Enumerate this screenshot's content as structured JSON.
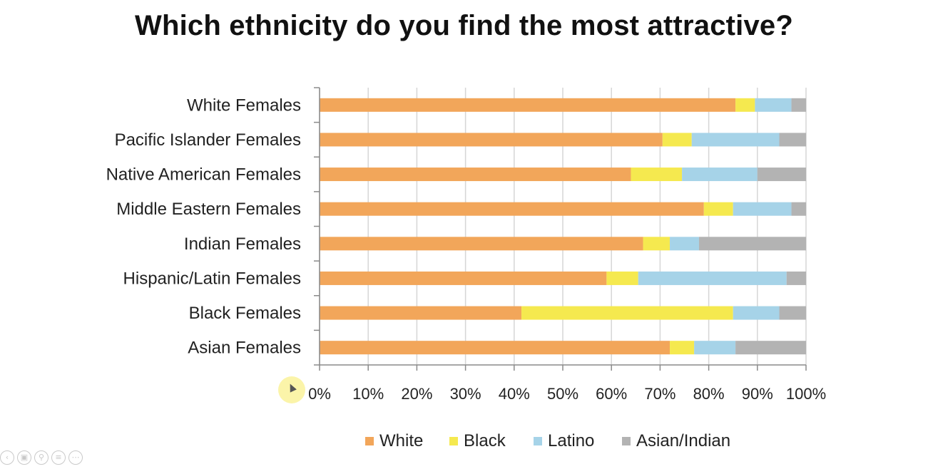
{
  "chart_data": {
    "type": "bar",
    "orientation": "horizontal",
    "stacked": "percent",
    "title": "Which ethnicity do you find the most attractive?",
    "xlabel": "",
    "ylabel": "",
    "xlim": [
      0,
      100
    ],
    "x_ticks": [
      "0%",
      "10%",
      "20%",
      "30%",
      "40%",
      "50%",
      "60%",
      "70%",
      "80%",
      "90%",
      "100%"
    ],
    "grid": "vertical",
    "legend_position": "bottom",
    "categories": [
      "White Females",
      "Pacific Islander Females",
      "Native American Females",
      "Middle Eastern Females",
      "Indian Females",
      "Hispanic/Latin Females",
      "Black Females",
      "Asian Females"
    ],
    "series": [
      {
        "name": "White",
        "color": "#F2A65A",
        "values": [
          85.5,
          70.5,
          64,
          79,
          66.5,
          59,
          41.5,
          72
        ]
      },
      {
        "name": "Black",
        "color": "#F5E94F",
        "values": [
          4,
          6,
          10.5,
          6,
          5.5,
          6.5,
          43.5,
          5
        ]
      },
      {
        "name": "Latino",
        "color": "#A6D3E8",
        "values": [
          7.5,
          18,
          15.5,
          12,
          6,
          30.5,
          9.5,
          8.5
        ]
      },
      {
        "name": "Asian/Indian",
        "color": "#B3B3B3",
        "values": [
          3,
          5.5,
          10,
          3,
          22,
          4,
          5.5,
          14.5
        ]
      }
    ]
  },
  "player": {
    "controls": [
      "prev-icon",
      "copy-icon",
      "zoom-icon",
      "options-icon",
      "more-icon"
    ]
  }
}
